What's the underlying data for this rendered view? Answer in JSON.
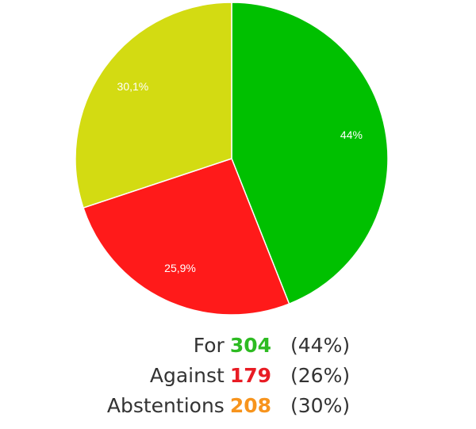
{
  "chart_data": {
    "type": "pie",
    "categories": [
      "For",
      "Against",
      "Abstentions"
    ],
    "values": [
      44,
      25.9,
      30.1
    ],
    "value_labels": [
      "44%",
      "25,9%",
      "30,1%"
    ],
    "colors": [
      "#00c000",
      "#ff1a1a",
      "#d3db12"
    ]
  },
  "tally": {
    "counts": [
      304,
      179,
      208
    ],
    "count_colors": [
      "#2dbb22",
      "#e81c24",
      "#f7941d"
    ],
    "shares": [
      "(44%)",
      "(26%)",
      "(30%)"
    ]
  }
}
